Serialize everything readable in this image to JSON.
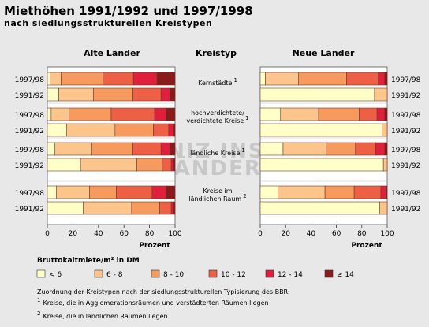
{
  "title": "Miethöhen 1991/1992 und 1997/1998",
  "subtitle": "nach siedlungsstrukturellen Kreistypen",
  "watermark": [
    "LEIBNIZ INSTITUT",
    "FÜR LÄNDERKUNDE"
  ],
  "legend_note": {
    "intro": "Zuordnung der Kreistypen nach der siedlungsstrukturellen Typisierung des BBR:",
    "notes": [
      {
        "mark": "1",
        "text": "Kreise, die in Agglomerationsräumen und verstädterten Räumen liegen"
      },
      {
        "mark": "2",
        "text": "Kreise, die in ländlichen Räumen liegen"
      }
    ]
  },
  "chart_data": {
    "type": "bar",
    "orientation": "horizontal-stacked-percent",
    "legend_title": "Bruttokaltmiete/m² in DM",
    "column_titles": {
      "left": "Alte Länder",
      "center": "Kreistyp",
      "right": "Neue Länder"
    },
    "xlabel": "Prozent",
    "xlim": [
      0,
      100
    ],
    "xticks": [
      0,
      20,
      40,
      60,
      80,
      100
    ],
    "classes": [
      {
        "label": "< 6",
        "color": "#ffffc8"
      },
      {
        "label": "6 - 8",
        "color": "#fcc58c"
      },
      {
        "label": "8 - 10",
        "color": "#f69a5e"
      },
      {
        "label": "10 - 12",
        "color": "#ee6046"
      },
      {
        "label": "12 - 14",
        "color": "#df1f3c"
      },
      {
        "label": "≥ 14",
        "color": "#8b1a1a"
      }
    ],
    "groups": [
      {
        "name": [
          "Kernstädte"
        ],
        "mark": "1",
        "alte": [
          {
            "year": "1997/98",
            "values": [
              2,
              8,
              30,
              22,
              17,
              13
            ]
          },
          {
            "year": "1991/92",
            "values": [
              9,
              27,
              31,
              22,
              7,
              4
            ]
          }
        ],
        "neue": [
          {
            "year": "1997/98",
            "values": [
              4,
              26,
              38,
              25,
              5,
              2
            ]
          },
          {
            "year": "1991/92",
            "values": [
              90,
              10,
              0,
              0,
              0,
              0
            ]
          }
        ]
      },
      {
        "name": [
          "hochverdichtete/",
          "verdichtete Kreise"
        ],
        "mark": "1",
        "alte": [
          {
            "year": "1997/98",
            "values": [
              3,
              14,
              33,
              34,
              9,
              7
            ]
          },
          {
            "year": "1991/92",
            "values": [
              15,
              38,
              30,
              12,
              4,
              1
            ]
          }
        ],
        "neue": [
          {
            "year": "1997/98",
            "values": [
              16,
              30,
              32,
              14,
              6,
              2
            ]
          },
          {
            "year": "1991/92",
            "values": [
              96,
              4,
              0,
              0,
              0,
              0
            ]
          }
        ]
      },
      {
        "name": [
          "ländliche Kreise"
        ],
        "mark": "1",
        "alte": [
          {
            "year": "1997/98",
            "values": [
              6,
              29,
              32,
              22,
              7,
              4
            ]
          },
          {
            "year": "1991/92",
            "values": [
              26,
              44,
              20,
              7,
              2,
              1
            ]
          }
        ],
        "neue": [
          {
            "year": "1997/98",
            "values": [
              18,
              34,
              23,
              16,
              7,
              2
            ]
          },
          {
            "year": "1991/92",
            "values": [
              97,
              3,
              0,
              0,
              0,
              0
            ]
          }
        ]
      },
      {
        "name": [
          "Kreise im",
          "ländlichen Raum"
        ],
        "mark": "2",
        "alte": [
          {
            "year": "1997/98",
            "values": [
              7,
              26,
              21,
              28,
              11,
              7
            ]
          },
          {
            "year": "1991/92",
            "values": [
              28,
              38,
              22,
              9,
              2,
              1
            ]
          }
        ],
        "neue": [
          {
            "year": "1997/98",
            "values": [
              14,
              37,
              23,
              21,
              4,
              1
            ]
          },
          {
            "year": "1991/92",
            "values": [
              94,
              6,
              0,
              0,
              0,
              0
            ]
          }
        ]
      }
    ]
  }
}
